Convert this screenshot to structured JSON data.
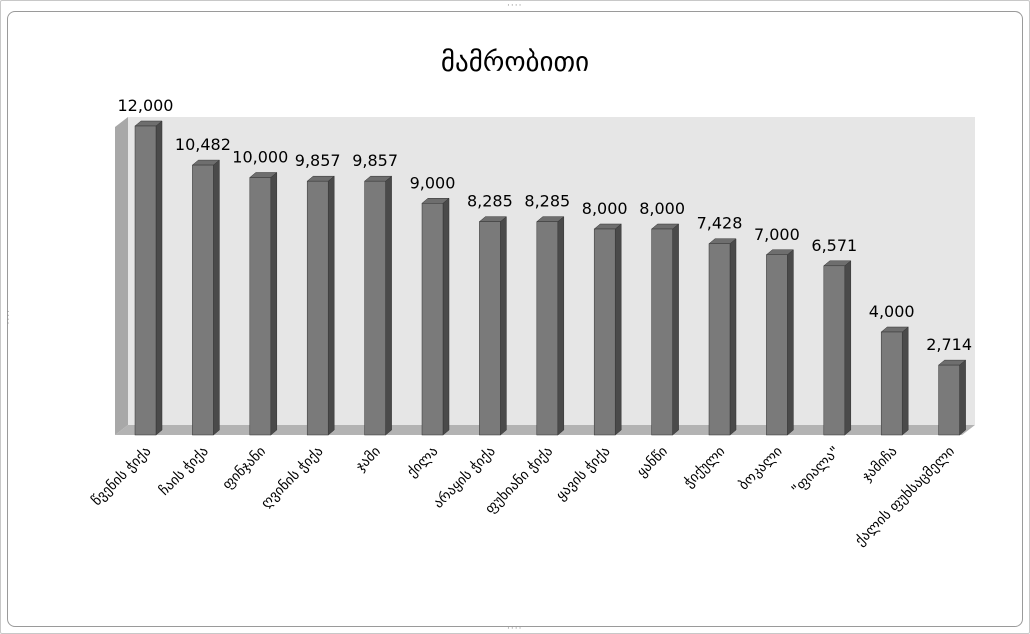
{
  "chart_data": {
    "type": "bar",
    "title": "მამრობითი",
    "xlabel": "",
    "ylabel": "",
    "ylim": [
      0,
      12000
    ],
    "grid": false,
    "legend": "none",
    "categories": [
      "წვენის ჭიქა",
      "ჩაის ჭიქა",
      "ფინჯანი",
      "ღვინის ჭიქა",
      "ჯამი",
      "ქილა",
      "არაყის ჭიქა",
      "ფუხიანი ჭიქა",
      "ყავის ჭიქა",
      "ყანწი",
      "ჭიქული",
      "ბოკალი",
      "\"ფიალა\"",
      "ჯამიჩა",
      "ქალის ფუხსაცმელი"
    ],
    "values": [
      12000,
      10482,
      10000,
      9857,
      9857,
      9000,
      8285,
      8285,
      8000,
      8000,
      7428,
      7000,
      6571,
      4000,
      2714
    ],
    "data_labels": [
      "12,000",
      "10,482",
      "10,000",
      "9,857",
      "9,857",
      "9,000",
      "8,285",
      "8,285",
      "8,000",
      "8,000",
      "7,428",
      "7,000",
      "6,571",
      "4,000",
      "2,714"
    ],
    "colors": {
      "bar_front": "#7a7a7a",
      "bar_side": "#4a4a4a",
      "bar_top": "#6e6e6e",
      "back_wall": "#e6e6e6",
      "side_wall": "#a8a8a8",
      "floor": "#b3b3b3",
      "text": "#000000"
    }
  }
}
